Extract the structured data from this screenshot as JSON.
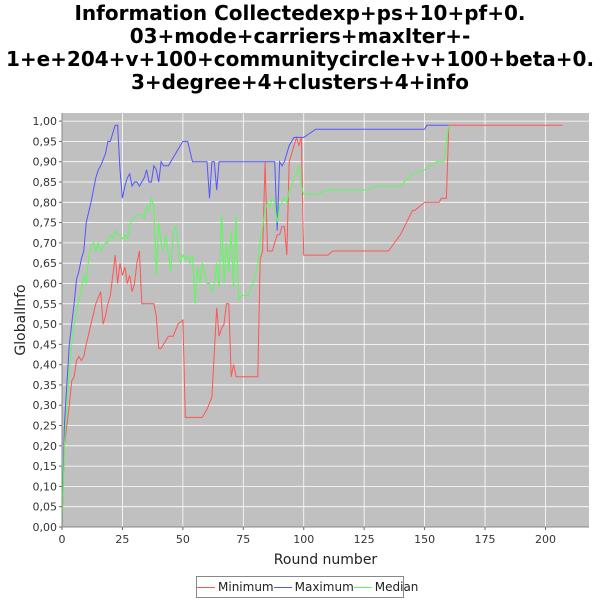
{
  "title_lines": [
    "Information Collectedexp+ps+10+pf+0.",
    "03+mode+carriers+maxIter+-",
    "1+e+204+v+100+communitycircle+v+100+beta+0.",
    "3+degree+4+clusters+4+info"
  ],
  "chart_data": {
    "type": "line",
    "title": "Information Collectedexp+ps+10+pf+0.03+mode+carriers+maxIter+-1+e+204+v+100+communitycircle+v+100+beta+0.3+degree+4+clusters+4+info",
    "xlabel": "Round number",
    "ylabel": "GlobalInfo",
    "xlim": [
      0,
      218
    ],
    "ylim": [
      0,
      1.02
    ],
    "x_ticks": [
      "0",
      "25",
      "50",
      "75",
      "100",
      "125",
      "150",
      "175",
      "200"
    ],
    "y_ticks": [
      "0,00",
      "0,05",
      "0,10",
      "0,15",
      "0,20",
      "0,25",
      "0,30",
      "0,35",
      "0,40",
      "0,45",
      "0,50",
      "0,55",
      "0,60",
      "0,65",
      "0,70",
      "0,75",
      "0,80",
      "0,85",
      "0,90",
      "0,95",
      "1,00"
    ],
    "grid": true,
    "legend_position": "bottom",
    "colors": {
      "background": "#c0c0c0",
      "grid": "#ffffff",
      "Minimum": "#ff5555",
      "Maximum": "#5555ff",
      "Median": "#55ff55"
    },
    "series": [
      {
        "name": "Minimum",
        "x": [
          0,
          1,
          2,
          3,
          4,
          5,
          6,
          7,
          8,
          9,
          10,
          12,
          14,
          16,
          17,
          18,
          19,
          20,
          21,
          22,
          23,
          24,
          25,
          26,
          27,
          28,
          29,
          30,
          31,
          32,
          33,
          34,
          35,
          36,
          37,
          38,
          39,
          40,
          41,
          42,
          44,
          46,
          48,
          50,
          51,
          52,
          54,
          56,
          58,
          60,
          62,
          64,
          65,
          66,
          67,
          68,
          69,
          70,
          71,
          72,
          73,
          74,
          75,
          76,
          77,
          78,
          79,
          80,
          81,
          82,
          83,
          84,
          85,
          86,
          87,
          88,
          89,
          90,
          91,
          92,
          93,
          94,
          95,
          96,
          97,
          98,
          99,
          100,
          110,
          112,
          130,
          135,
          140,
          145,
          146,
          150,
          155,
          156,
          157,
          158,
          159,
          160,
          180,
          200,
          207
        ],
        "y": [
          0.0,
          0.2,
          0.25,
          0.3,
          0.36,
          0.37,
          0.41,
          0.42,
          0.41,
          0.42,
          0.45,
          0.5,
          0.55,
          0.58,
          0.5,
          0.52,
          0.55,
          0.57,
          0.62,
          0.67,
          0.6,
          0.65,
          0.62,
          0.64,
          0.6,
          0.62,
          0.58,
          0.6,
          0.65,
          0.68,
          0.55,
          0.55,
          0.55,
          0.55,
          0.55,
          0.55,
          0.52,
          0.44,
          0.44,
          0.45,
          0.47,
          0.47,
          0.5,
          0.51,
          0.27,
          0.27,
          0.27,
          0.27,
          0.27,
          0.29,
          0.32,
          0.54,
          0.47,
          0.49,
          0.5,
          0.55,
          0.55,
          0.37,
          0.4,
          0.37,
          0.37,
          0.37,
          0.37,
          0.37,
          0.37,
          0.37,
          0.37,
          0.37,
          0.37,
          0.66,
          0.68,
          0.9,
          0.68,
          0.68,
          0.68,
          0.7,
          0.72,
          0.72,
          0.74,
          0.74,
          0.67,
          0.9,
          0.92,
          0.94,
          0.96,
          0.94,
          0.96,
          0.67,
          0.67,
          0.68,
          0.68,
          0.68,
          0.72,
          0.78,
          0.78,
          0.8,
          0.8,
          0.8,
          0.81,
          0.81,
          0.81,
          0.99,
          0.99,
          0.99,
          0.99
        ]
      },
      {
        "name": "Maximum",
        "x": [
          0,
          1,
          2,
          3,
          4,
          5,
          6,
          7,
          8,
          9,
          10,
          12,
          14,
          15,
          16,
          18,
          19,
          20,
          22,
          23,
          24,
          25,
          26,
          27,
          28,
          29,
          30,
          31,
          32,
          33,
          34,
          35,
          36,
          37,
          38,
          39,
          40,
          41,
          42,
          44,
          46,
          48,
          50,
          52,
          54,
          56,
          58,
          60,
          61,
          62,
          63,
          64,
          65,
          66,
          67,
          68,
          70,
          72,
          74,
          76,
          78,
          80,
          82,
          84,
          86,
          87,
          88,
          89,
          90,
          91,
          92,
          93,
          94,
          95,
          96,
          97,
          98,
          100,
          105,
          130,
          135,
          150,
          151,
          155,
          158,
          160
        ],
        "y": [
          0.0,
          0.25,
          0.35,
          0.45,
          0.5,
          0.55,
          0.61,
          0.63,
          0.66,
          0.68,
          0.75,
          0.8,
          0.86,
          0.88,
          0.89,
          0.92,
          0.95,
          0.95,
          0.99,
          0.99,
          0.88,
          0.81,
          0.84,
          0.86,
          0.87,
          0.84,
          0.85,
          0.85,
          0.84,
          0.85,
          0.86,
          0.88,
          0.85,
          0.85,
          0.89,
          0.88,
          0.85,
          0.9,
          0.89,
          0.89,
          0.91,
          0.93,
          0.95,
          0.95,
          0.9,
          0.9,
          0.9,
          0.9,
          0.81,
          0.9,
          0.9,
          0.83,
          0.9,
          0.9,
          0.9,
          0.9,
          0.9,
          0.9,
          0.9,
          0.9,
          0.9,
          0.9,
          0.9,
          0.9,
          0.9,
          0.9,
          0.9,
          0.73,
          0.9,
          0.89,
          0.9,
          0.92,
          0.94,
          0.95,
          0.96,
          0.96,
          0.96,
          0.96,
          0.98,
          0.98,
          0.98,
          0.98,
          0.99,
          0.99,
          0.99,
          0.99
        ]
      },
      {
        "name": "Median",
        "x": [
          0,
          1,
          2,
          3,
          4,
          5,
          6,
          7,
          8,
          9,
          10,
          11,
          12,
          13,
          14,
          15,
          16,
          17,
          18,
          19,
          20,
          21,
          22,
          23,
          24,
          25,
          26,
          27,
          28,
          29,
          30,
          31,
          32,
          33,
          34,
          35,
          36,
          37,
          38,
          39,
          40,
          41,
          42,
          43,
          44,
          45,
          46,
          47,
          48,
          49,
          50,
          51,
          52,
          53,
          54,
          55,
          56,
          57,
          58,
          59,
          60,
          61,
          62,
          63,
          64,
          65,
          66,
          67,
          68,
          69,
          70,
          71,
          72,
          73,
          74,
          75,
          76,
          77,
          78,
          79,
          80,
          81,
          82,
          83,
          84,
          85,
          86,
          87,
          88,
          89,
          90,
          91,
          92,
          93,
          94,
          95,
          96,
          97,
          98,
          99,
          100,
          105,
          110,
          115,
          120,
          125,
          130,
          135,
          140,
          145,
          150,
          155,
          158,
          160
        ],
        "y": [
          0.0,
          0.2,
          0.3,
          0.38,
          0.45,
          0.5,
          0.53,
          0.56,
          0.58,
          0.62,
          0.6,
          0.66,
          0.69,
          0.7,
          0.68,
          0.7,
          0.68,
          0.69,
          0.7,
          0.7,
          0.72,
          0.71,
          0.73,
          0.72,
          0.72,
          0.71,
          0.72,
          0.71,
          0.74,
          0.76,
          0.76,
          0.77,
          0.77,
          0.77,
          0.76,
          0.79,
          0.78,
          0.81,
          0.79,
          0.62,
          0.75,
          0.7,
          0.68,
          0.72,
          0.67,
          0.63,
          0.73,
          0.74,
          0.7,
          0.65,
          0.67,
          0.66,
          0.67,
          0.65,
          0.67,
          0.55,
          0.64,
          0.6,
          0.65,
          0.63,
          0.6,
          0.6,
          0.58,
          0.6,
          0.65,
          0.59,
          0.77,
          0.6,
          0.7,
          0.63,
          0.73,
          0.59,
          0.77,
          0.56,
          0.57,
          0.57,
          0.57,
          0.57,
          0.59,
          0.6,
          0.62,
          0.65,
          0.71,
          0.74,
          0.78,
          0.8,
          0.79,
          0.81,
          0.8,
          0.75,
          0.79,
          0.8,
          0.81,
          0.8,
          0.83,
          0.84,
          0.86,
          0.87,
          0.89,
          0.84,
          0.82,
          0.82,
          0.83,
          0.83,
          0.83,
          0.83,
          0.84,
          0.84,
          0.84,
          0.87,
          0.88,
          0.9,
          0.9,
          0.99
        ]
      }
    ]
  }
}
